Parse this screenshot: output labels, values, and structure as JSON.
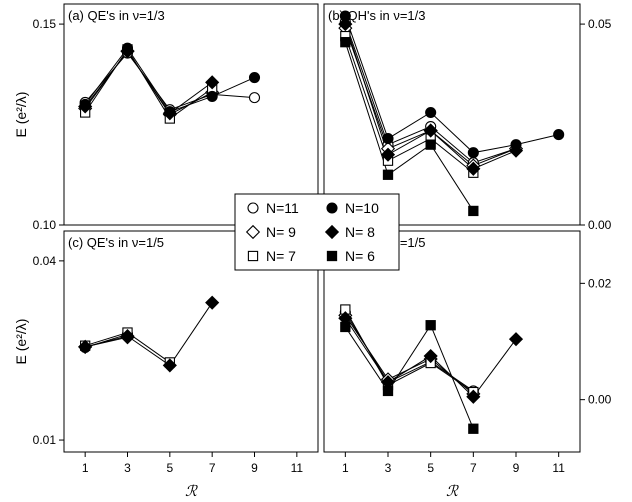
{
  "chart_data": [
    {
      "type": "line",
      "title": "(a) QE's in ν=1/3",
      "xlabel": "",
      "ylabel": "E  (e²/λ)",
      "xlim": [
        0,
        12
      ],
      "ylim": [
        0.1,
        0.155
      ],
      "y_axis_side": "left",
      "yticks": [
        0.1,
        0.15
      ],
      "ytick_labels": [
        "0.10",
        "0.15"
      ],
      "series": [
        {
          "name": "N=11",
          "marker": "circle-open",
          "x": [
            1,
            3,
            5,
            7,
            9
          ],
          "y": [
            0.1305,
            0.1428,
            0.1287,
            0.1325,
            0.1317
          ]
        },
        {
          "name": "N= 9",
          "marker": "diamond-open",
          "x": [
            1,
            3,
            5,
            7
          ],
          "y": [
            0.129,
            0.1433,
            0.1275,
            0.133
          ]
        },
        {
          "name": "N= 7",
          "marker": "square-open",
          "x": [
            1,
            3,
            5,
            7
          ],
          "y": [
            0.128,
            0.1437,
            0.1265,
            0.134
          ]
        },
        {
          "name": "N=10",
          "marker": "circle-filled",
          "x": [
            1,
            3,
            5,
            7,
            9
          ],
          "y": [
            0.13,
            0.144,
            0.1282,
            0.132,
            0.1367
          ]
        },
        {
          "name": "N= 8",
          "marker": "diamond-filled",
          "x": [
            1,
            3,
            5,
            7
          ],
          "y": [
            0.1295,
            0.1432,
            0.1278,
            0.1355
          ]
        }
      ]
    },
    {
      "type": "line",
      "title": "(b) QH's in ν=1/3",
      "xlabel": "",
      "ylabel": "",
      "xlim": [
        0,
        12
      ],
      "ylim": [
        0,
        0.055
      ],
      "y_axis_side": "right",
      "yticks": [
        0.0,
        0.05
      ],
      "ytick_labels": [
        "0.00",
        "0.05"
      ],
      "series": [
        {
          "name": "N=11",
          "marker": "circle-open",
          "x": [
            1,
            3,
            5,
            7,
            9
          ],
          "y": [
            0.0505,
            0.02,
            0.0245,
            0.0155,
            0.019
          ]
        },
        {
          "name": "N= 9",
          "marker": "diamond-open",
          "x": [
            1,
            3,
            5,
            7,
            9
          ],
          "y": [
            0.049,
            0.019,
            0.0235,
            0.0148,
            0.019
          ]
        },
        {
          "name": "N= 7",
          "marker": "square-open",
          "x": [
            1,
            3,
            5,
            7
          ],
          "y": [
            0.047,
            0.016,
            0.0215,
            0.013
          ]
        },
        {
          "name": "N=10",
          "marker": "circle-filled",
          "x": [
            1,
            3,
            5,
            7,
            9,
            11
          ],
          "y": [
            0.052,
            0.0215,
            0.028,
            0.018,
            0.02,
            0.0225
          ]
        },
        {
          "name": "N= 8",
          "marker": "diamond-filled",
          "x": [
            1,
            3,
            5,
            7,
            9
          ],
          "y": [
            0.05,
            0.0175,
            0.0235,
            0.014,
            0.0185
          ]
        },
        {
          "name": "N= 6",
          "marker": "square-filled",
          "x": [
            1,
            3,
            5,
            7
          ],
          "y": [
            0.0455,
            0.0125,
            0.02,
            0.0035
          ]
        }
      ]
    },
    {
      "type": "line",
      "title": "(c) QE's in ν=1/5",
      "xlabel": "ℛ",
      "ylabel": "E  (e²/λ)",
      "xlim": [
        0,
        12
      ],
      "ylim": [
        0.008,
        0.045
      ],
      "y_axis_side": "left",
      "yticks": [
        0.01,
        0.04
      ],
      "ytick_labels": [
        "0.01",
        "0.04"
      ],
      "series": [
        {
          "name": "N=11",
          "marker": "circle-open",
          "x": [
            1,
            3
          ],
          "y": [
            0.0255,
            0.0277
          ]
        },
        {
          "name": "N= 9",
          "marker": "diamond-open",
          "x": [
            1,
            3
          ],
          "y": [
            0.0256,
            0.0272
          ]
        },
        {
          "name": "N= 7",
          "marker": "square-open",
          "x": [
            1,
            3,
            5
          ],
          "y": [
            0.0258,
            0.028,
            0.023
          ]
        },
        {
          "name": "N= 8",
          "marker": "diamond-filled",
          "x": [
            1,
            3,
            5,
            7
          ],
          "y": [
            0.0256,
            0.0274,
            0.0225,
            0.033
          ]
        }
      ]
    },
    {
      "type": "line",
      "title": "(d) QH's in ν=1/5",
      "xlabel": "ℛ",
      "ylabel": "",
      "xlim": [
        0,
        12
      ],
      "ylim": [
        -0.009,
        0.029
      ],
      "y_axis_side": "right",
      "yticks": [
        0.0,
        0.02
      ],
      "ytick_labels": [
        "0.00",
        "0.02"
      ],
      "series": [
        {
          "name": "N=11",
          "marker": "circle-open",
          "x": [
            1,
            3,
            5,
            7
          ],
          "y": [
            0.015,
            0.003,
            0.0065,
            0.0015
          ]
        },
        {
          "name": "N= 9",
          "marker": "diamond-open",
          "x": [
            1,
            3,
            5,
            7
          ],
          "y": [
            0.0145,
            0.0035,
            0.007,
            0.001
          ]
        },
        {
          "name": "N= 7",
          "marker": "square-open",
          "x": [
            1,
            3,
            5,
            7
          ],
          "y": [
            0.0155,
            0.0025,
            0.0063,
            0.0013
          ]
        },
        {
          "name": "N= 8",
          "marker": "diamond-filled",
          "x": [
            1,
            3,
            5,
            7,
            9
          ],
          "y": [
            0.014,
            0.003,
            0.0075,
            0.0005,
            0.0104
          ]
        },
        {
          "name": "N= 6",
          "marker": "square-filled",
          "x": [
            1,
            3,
            5,
            7
          ],
          "y": [
            0.0125,
            0.0015,
            0.0128,
            -0.005
          ]
        }
      ]
    }
  ],
  "x_ticks": [
    1,
    3,
    5,
    7,
    9,
    11
  ],
  "legend": {
    "placement": "center",
    "entries": [
      {
        "label": "N=11",
        "marker": "circle-open"
      },
      {
        "label": "N=10",
        "marker": "circle-filled"
      },
      {
        "label": "N= 9",
        "marker": "diamond-open"
      },
      {
        "label": "N= 8",
        "marker": "diamond-filled"
      },
      {
        "label": "N= 7",
        "marker": "square-open"
      },
      {
        "label": "N= 6",
        "marker": "square-filled"
      }
    ]
  },
  "colors": {
    "ink": "#000000",
    "background": "#ffffff"
  }
}
